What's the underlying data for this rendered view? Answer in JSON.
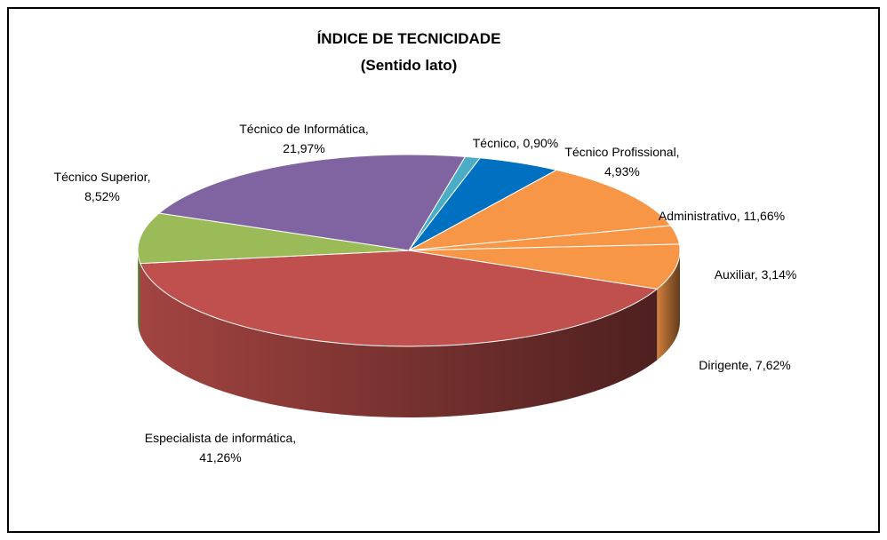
{
  "chart_data": {
    "type": "pie",
    "title": "ÍNDICE DE TECNICIDADE",
    "subtitle": "(Sentido lato)",
    "categories": [
      "Técnico,",
      "Técnico Profissional,",
      "Administrativo,",
      "Auxiliar,",
      "Dirigente,",
      "Especialista de informática,",
      "Técnico Superior,",
      "Técnico de Informática,"
    ],
    "values": [
      0.9,
      4.93,
      11.66,
      3.14,
      7.62,
      41.26,
      8.52,
      21.97
    ],
    "value_labels": [
      "0,90%",
      "4,93%",
      "11,66%",
      "3,14%",
      "7,62%",
      "41,26%",
      "8,52%",
      "21,97%"
    ],
    "colors": [
      "#4bacc6",
      "#0070c0",
      "#f79646",
      "#f79646",
      "#f79646",
      "#c0504d",
      "#9bbb59",
      "#8064a2"
    ]
  }
}
